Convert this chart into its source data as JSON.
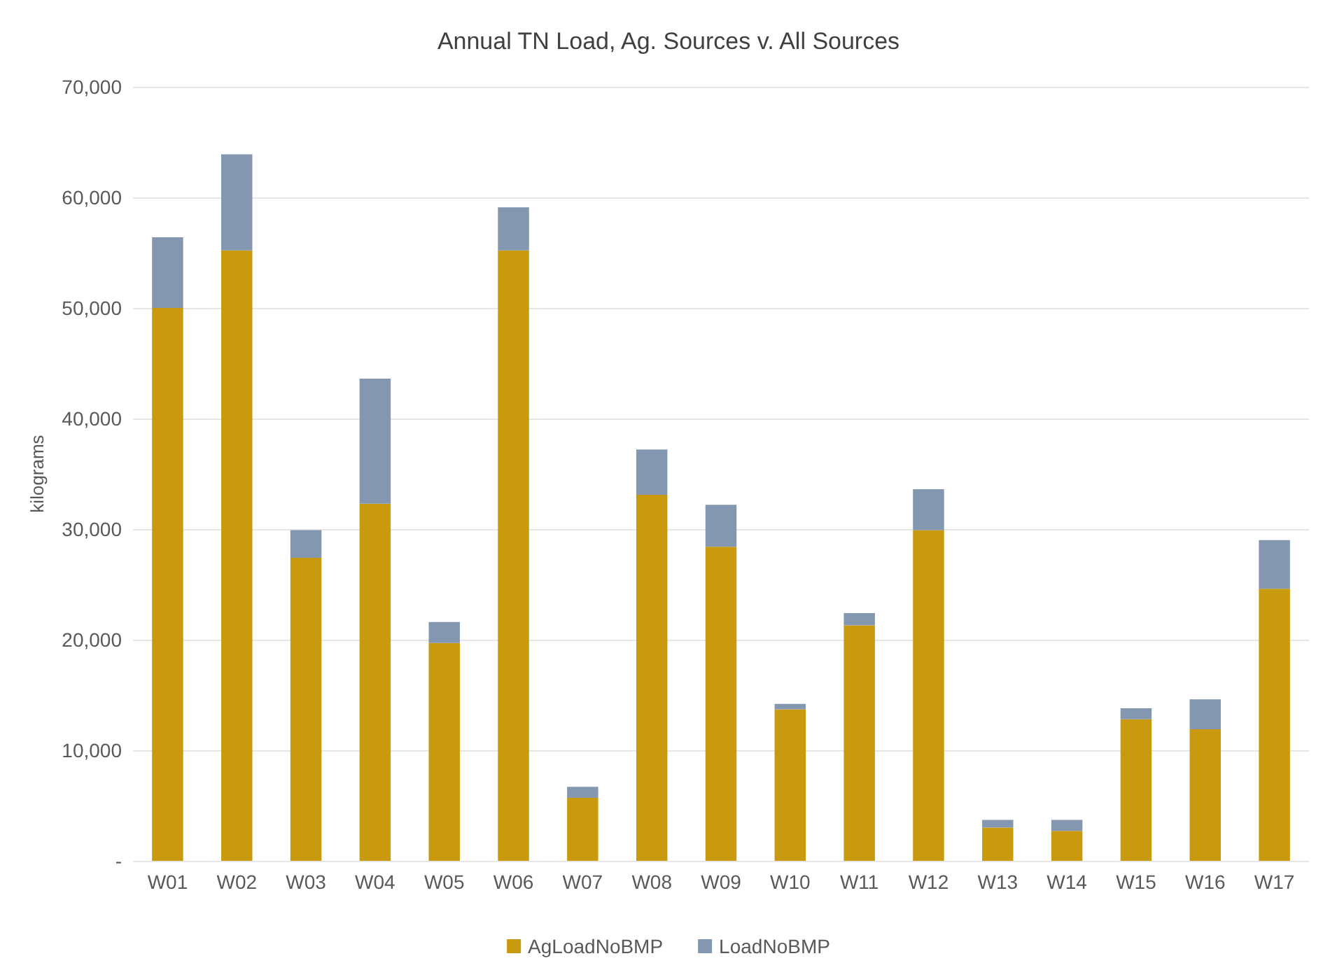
{
  "chart_data": {
    "type": "bar",
    "title": "Annual TN Load, Ag. Sources v. All Sources",
    "ylabel": "kilograms",
    "categories": [
      "W01",
      "W02",
      "W03",
      "W04",
      "W05",
      "W06",
      "W07",
      "W08",
      "W09",
      "W10",
      "W11",
      "W12",
      "W13",
      "W14",
      "W15",
      "W16",
      "W17"
    ],
    "series": [
      {
        "name": "AgLoadNoBMP",
        "color": "#c99a0e",
        "values": [
          50000,
          55200,
          27400,
          32300,
          19700,
          55200,
          5700,
          33100,
          28400,
          13700,
          21300,
          29900,
          3000,
          2700,
          12800,
          11900,
          24600
        ]
      },
      {
        "name": "LoadNoBMP",
        "color": "#8497b0",
        "values": [
          6400,
          8700,
          2500,
          11300,
          1900,
          3900,
          1000,
          4100,
          3800,
          500,
          1100,
          3700,
          700,
          1000,
          1000,
          2700,
          4400
        ]
      }
    ],
    "stacked": true,
    "ylim": [
      0,
      70000
    ],
    "yticks": [
      {
        "value": 0,
        "label": "-"
      },
      {
        "value": 10000,
        "label": "10,000"
      },
      {
        "value": 20000,
        "label": "20,000"
      },
      {
        "value": 30000,
        "label": "30,000"
      },
      {
        "value": 40000,
        "label": "40,000"
      },
      {
        "value": 50000,
        "label": "50,000"
      },
      {
        "value": 60000,
        "label": "60,000"
      },
      {
        "value": 70000,
        "label": "70,000"
      }
    ],
    "grid": "y",
    "legend": "bottom"
  }
}
